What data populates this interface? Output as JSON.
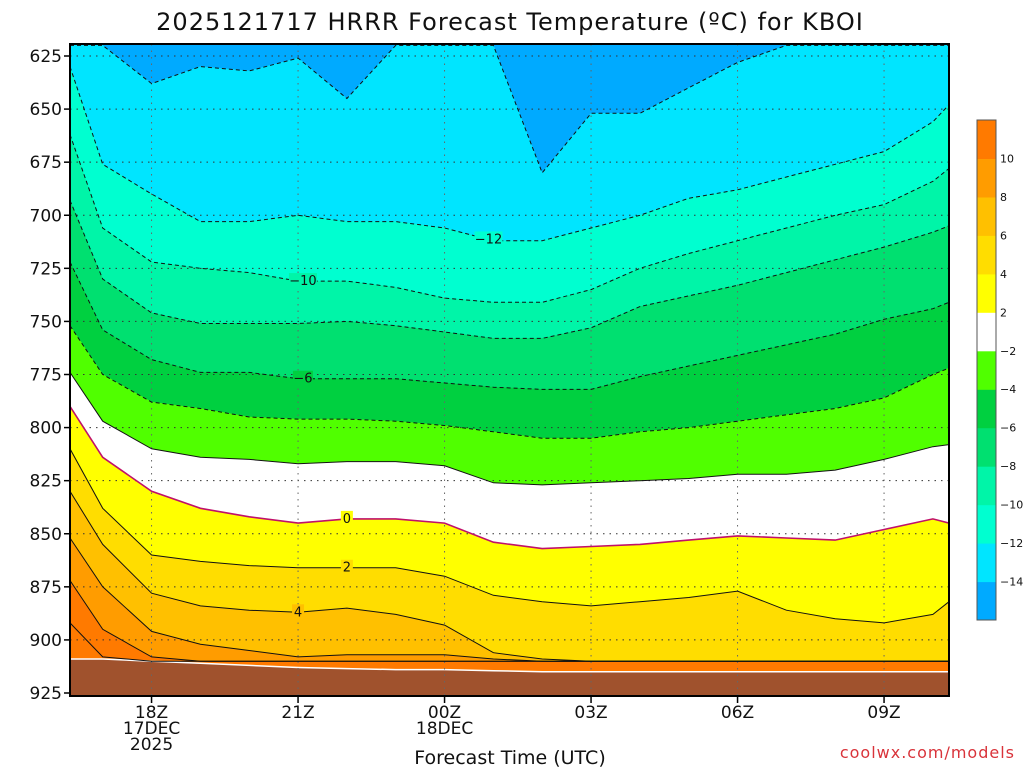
{
  "chart_data": {
    "type": "contour",
    "title": "2025121717 HRRR Forecast Temperature (ºC) for KBOI",
    "xlabel": "Forecast Time (UTC)",
    "ylabel": "",
    "x_range_hours": [
      16.33,
      34.33
    ],
    "x_ticks": [
      {
        "hour": 18,
        "lines": [
          "18Z",
          "17DEC",
          "2025"
        ]
      },
      {
        "hour": 21,
        "lines": [
          "21Z"
        ]
      },
      {
        "hour": 24,
        "lines": [
          "00Z",
          "18DEC"
        ]
      },
      {
        "hour": 27,
        "lines": [
          "03Z"
        ]
      },
      {
        "hour": 30,
        "lines": [
          "06Z"
        ]
      },
      {
        "hour": 33,
        "lines": [
          "09Z"
        ]
      }
    ],
    "y_range_hpa": [
      925,
      620
    ],
    "y_ticks": [
      625,
      650,
      675,
      700,
      725,
      750,
      775,
      800,
      825,
      850,
      875,
      900,
      925
    ],
    "grid": true,
    "colorbar": {
      "placement": "right",
      "levels": [
        -16,
        -14,
        -12,
        -10,
        -8,
        -6,
        -4,
        -2,
        2,
        4,
        6,
        8,
        10,
        12
      ],
      "labels": [
        "−14",
        "−12",
        "−10",
        "−8",
        "−6",
        "−4",
        "−2",
        "2",
        "4",
        "6",
        "8",
        "10"
      ],
      "colors": [
        "#00aaff",
        "#00e5ff",
        "#00ffd0",
        "#00f5a8",
        "#00e070",
        "#00d040",
        "#50ff00",
        "#ffffff",
        "#ffff00",
        "#ffdd00",
        "#ffc000",
        "#ff9c00",
        "#ff7a00"
      ]
    },
    "x_hours": [
      16.33,
      17,
      18,
      19,
      20,
      21,
      22,
      23,
      24,
      25,
      26,
      27,
      28,
      29,
      30,
      31,
      32,
      33,
      34,
      34.33
    ],
    "terrain": {
      "color": "#a0522d",
      "top_hpa": [
        909,
        909,
        910,
        911,
        912,
        913,
        913.5,
        914,
        914,
        914.5,
        915,
        915,
        915,
        915,
        915,
        915,
        915,
        915,
        915,
        915
      ]
    },
    "contours": [
      {
        "level": -14,
        "dashed": true,
        "label": "",
        "label_hour": null,
        "p": [
          620,
          620,
          638,
          630,
          632,
          626,
          645,
          620,
          620,
          620,
          680,
          652,
          652,
          640,
          628,
          620,
          620,
          620,
          620,
          620
        ]
      },
      {
        "level": -12,
        "dashed": true,
        "label": "−12",
        "label_hour": 24.9,
        "p": [
          630,
          676,
          690,
          703,
          703,
          700,
          703,
          703,
          706,
          712,
          712,
          706,
          700,
          692,
          688,
          682,
          676,
          670,
          656,
          648
        ]
      },
      {
        "level": -10,
        "dashed": true,
        "label": "−10",
        "label_hour": 21.1,
        "p": [
          662,
          706,
          722,
          725,
          727,
          731,
          731,
          734,
          739,
          741,
          741,
          735,
          725,
          718,
          712,
          706,
          700,
          695,
          684,
          678
        ]
      },
      {
        "level": -8,
        "dashed": true,
        "label": "",
        "label_hour": null,
        "p": [
          693,
          730,
          746,
          751,
          751,
          751,
          750,
          752,
          755,
          758,
          758,
          753,
          743,
          738,
          733,
          727,
          721,
          715,
          708,
          705
        ]
      },
      {
        "level": -6,
        "dashed": true,
        "label": "−6",
        "label_hour": 21.1,
        "p": [
          722,
          754,
          768,
          774,
          774,
          777,
          777,
          777,
          779,
          781,
          782,
          782,
          776,
          771,
          766,
          761,
          756,
          749,
          744,
          741
        ]
      },
      {
        "level": -4,
        "dashed": true,
        "label": "",
        "label_hour": null,
        "p": [
          752,
          775,
          788,
          791,
          795,
          796,
          796,
          797,
          799,
          802,
          805,
          805,
          802,
          800,
          797,
          794,
          791,
          786,
          775,
          772
        ]
      },
      {
        "level": -2,
        "dashed": false,
        "label": "",
        "label_hour": null,
        "p": [
          774,
          797,
          810,
          814,
          815,
          817,
          816,
          816,
          818,
          826,
          827,
          826,
          825,
          824,
          822,
          822,
          820,
          815,
          809,
          808
        ]
      },
      {
        "level": 0,
        "dashed": false,
        "label": "0",
        "label_hour": 22.0,
        "p": [
          790,
          814,
          830,
          838,
          842,
          845,
          843,
          843,
          845,
          854,
          857,
          856,
          855,
          853,
          851,
          852,
          853,
          848,
          843,
          845
        ]
      },
      {
        "level": 2,
        "dashed": false,
        "label": "2",
        "label_hour": 22.0,
        "p": [
          810,
          838,
          860,
          863,
          865,
          866,
          866,
          866,
          870,
          879,
          882,
          884,
          882,
          880,
          877,
          886,
          890,
          892,
          888,
          882
        ]
      },
      {
        "level": 4,
        "dashed": false,
        "label": "4",
        "label_hour": 21.0,
        "p": [
          830,
          855,
          878,
          884,
          886,
          887,
          885,
          888,
          893,
          906,
          909,
          910,
          910,
          910,
          910,
          910,
          910,
          910,
          910,
          910
        ]
      },
      {
        "level": 6,
        "dashed": false,
        "label": "",
        "label_hour": null,
        "p": [
          852,
          875,
          896,
          902,
          905,
          908,
          907,
          907,
          907,
          909,
          910,
          910,
          910,
          910,
          910,
          910,
          910,
          910,
          910,
          910
        ]
      },
      {
        "level": 8,
        "dashed": false,
        "label": "",
        "label_hour": null,
        "p": [
          872,
          895,
          908,
          910,
          910,
          910,
          910,
          910,
          910,
          910,
          910,
          910,
          910,
          910,
          910,
          910,
          910,
          910,
          910,
          910
        ]
      },
      {
        "level": 10,
        "dashed": false,
        "label": "",
        "label_hour": null,
        "p": [
          892,
          908,
          910,
          910,
          910,
          910,
          910,
          910,
          910,
          910,
          910,
          910,
          910,
          910,
          910,
          910,
          910,
          910,
          910,
          910
        ]
      }
    ],
    "credit": "coolwx.com/models"
  }
}
